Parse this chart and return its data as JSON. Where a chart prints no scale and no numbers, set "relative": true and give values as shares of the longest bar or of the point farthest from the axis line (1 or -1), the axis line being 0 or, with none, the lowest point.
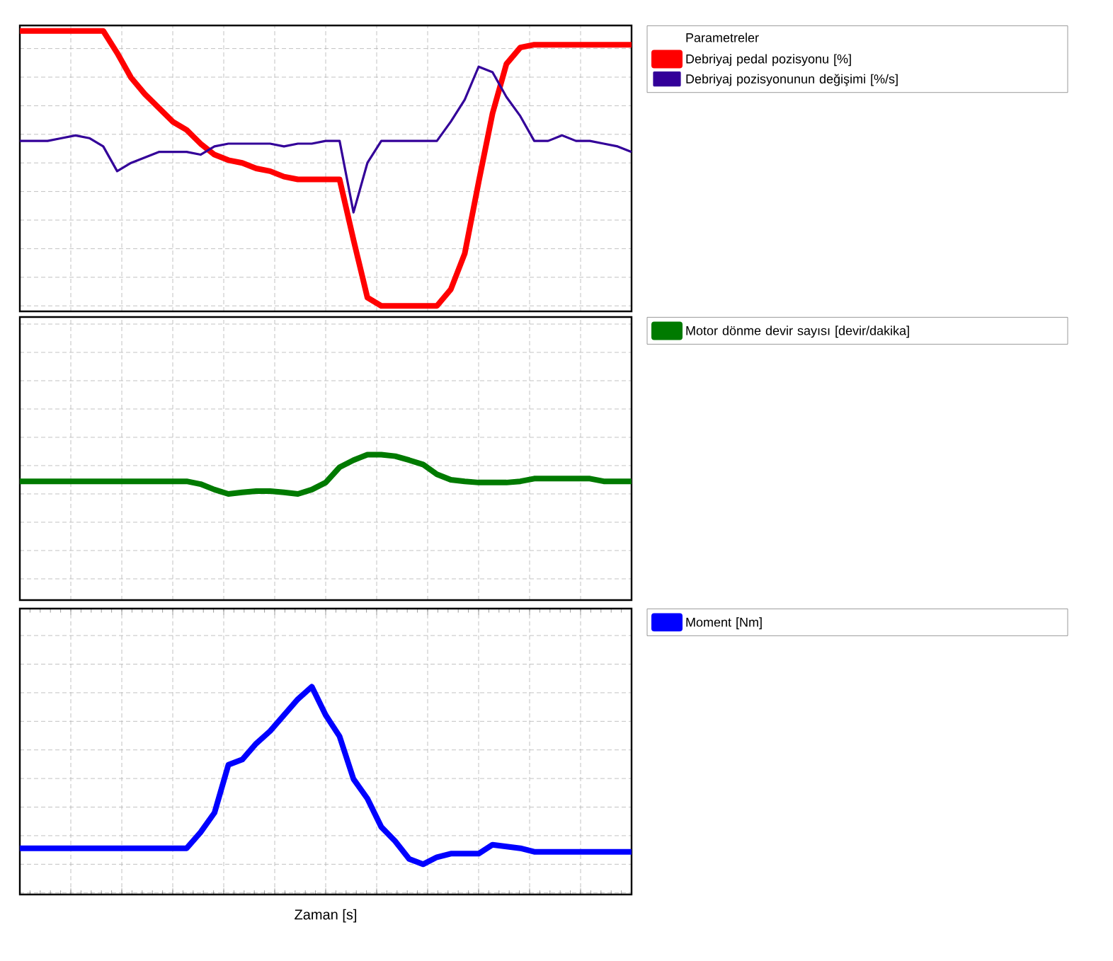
{
  "chart_data": [
    {
      "type": "line",
      "relative": true,
      "grid": true,
      "legend": "right",
      "tick_labels": false,
      "legend_title": "Parametreler",
      "categories": [
        null,
        null,
        null,
        null,
        null,
        null,
        null,
        null,
        null,
        null,
        null,
        null,
        null,
        null,
        null,
        null,
        null,
        null,
        null,
        null,
        null,
        null,
        null,
        null,
        null,
        null,
        null,
        null,
        null,
        null,
        null,
        null,
        null,
        null,
        null,
        null,
        null,
        null,
        null,
        null,
        null,
        null,
        null,
        null,
        null
      ],
      "series": [
        {
          "name": "Debriyaj pedal pozisyonu [%]",
          "color": "#ff0000",
          "values": [
            1.0,
            1.0,
            1.0,
            1.0,
            1.0,
            1.0,
            1.0,
            0.92,
            0.83,
            0.77,
            0.72,
            0.67,
            0.64,
            0.59,
            0.55,
            0.53,
            0.52,
            0.5,
            0.49,
            0.47,
            0.46,
            0.46,
            0.46,
            0.46,
            0.24,
            0.03,
            0,
            0,
            0,
            0,
            0,
            0.06,
            0.19,
            0.45,
            0.7,
            0.88,
            0.94,
            0.95,
            0.95,
            0.95,
            0.95,
            0.95,
            0.95,
            0.95,
            0.95
          ]
        },
        {
          "name": "Debriyaj pozisyonunun değişimi [%/s]",
          "color": "#330099",
          "values": [
            0.6,
            0.6,
            0.6,
            0.61,
            0.62,
            0.61,
            0.58,
            0.49,
            0.52,
            0.54,
            0.56,
            0.56,
            0.56,
            0.55,
            0.58,
            0.59,
            0.59,
            0.59,
            0.59,
            0.58,
            0.59,
            0.59,
            0.6,
            0.6,
            0.34,
            0.52,
            0.6,
            0.6,
            0.6,
            0.6,
            0.6,
            0.67,
            0.75,
            0.87,
            0.85,
            0.76,
            0.69,
            0.6,
            0.6,
            0.62,
            0.6,
            0.6,
            0.59,
            0.58,
            0.56
          ]
        }
      ]
    },
    {
      "type": "line",
      "relative": true,
      "grid": true,
      "legend": "right",
      "tick_labels": false,
      "categories": [
        null,
        null,
        null,
        null,
        null,
        null,
        null,
        null,
        null,
        null,
        null,
        null,
        null,
        null,
        null,
        null,
        null,
        null,
        null,
        null,
        null,
        null,
        null,
        null,
        null,
        null,
        null,
        null,
        null,
        null,
        null,
        null,
        null,
        null,
        null,
        null,
        null,
        null,
        null,
        null,
        null,
        null,
        null,
        null,
        null
      ],
      "series": [
        {
          "name": "Motor dönme devir sayısı [devir/dakika]",
          "color": "#007a00",
          "values": [
            0.32,
            0.32,
            0.32,
            0.32,
            0.32,
            0.32,
            0.32,
            0.32,
            0.32,
            0.32,
            0.32,
            0.32,
            0.32,
            0.25,
            0.11,
            0,
            0.04,
            0.07,
            0.07,
            0.04,
            0,
            0.11,
            0.29,
            0.68,
            0.86,
            1.0,
            1.0,
            0.96,
            0.86,
            0.75,
            0.5,
            0.36,
            0.32,
            0.29,
            0.29,
            0.29,
            0.32,
            0.39,
            0.39,
            0.39,
            0.39,
            0.39,
            0.32,
            0.32,
            0.32
          ]
        }
      ]
    },
    {
      "type": "line",
      "relative": true,
      "grid": true,
      "legend": "right",
      "tick_labels": false,
      "xlabel": "Zaman [s]",
      "categories": [
        null,
        null,
        null,
        null,
        null,
        null,
        null,
        null,
        null,
        null,
        null,
        null,
        null,
        null,
        null,
        null,
        null,
        null,
        null,
        null,
        null,
        null,
        null,
        null,
        null,
        null,
        null,
        null,
        null,
        null,
        null,
        null,
        null,
        null,
        null,
        null,
        null,
        null,
        null,
        null,
        null,
        null,
        null,
        null,
        null
      ],
      "series": [
        {
          "name": "Moment [Nm]",
          "color": "#0000ff",
          "values": [
            0.09,
            0.09,
            0.09,
            0.09,
            0.09,
            0.09,
            0.09,
            0.09,
            0.09,
            0.09,
            0.09,
            0.09,
            0.09,
            0.18,
            0.29,
            0.56,
            0.59,
            0.68,
            0.75,
            0.84,
            0.93,
            1.0,
            0.84,
            0.72,
            0.48,
            0.37,
            0.21,
            0.13,
            0.03,
            0,
            0.04,
            0.06,
            0.06,
            0.06,
            0.11,
            0.1,
            0.09,
            0.07,
            0.07,
            0.07,
            0.07,
            0.07,
            0.07,
            0.07,
            0.07
          ]
        }
      ]
    }
  ]
}
